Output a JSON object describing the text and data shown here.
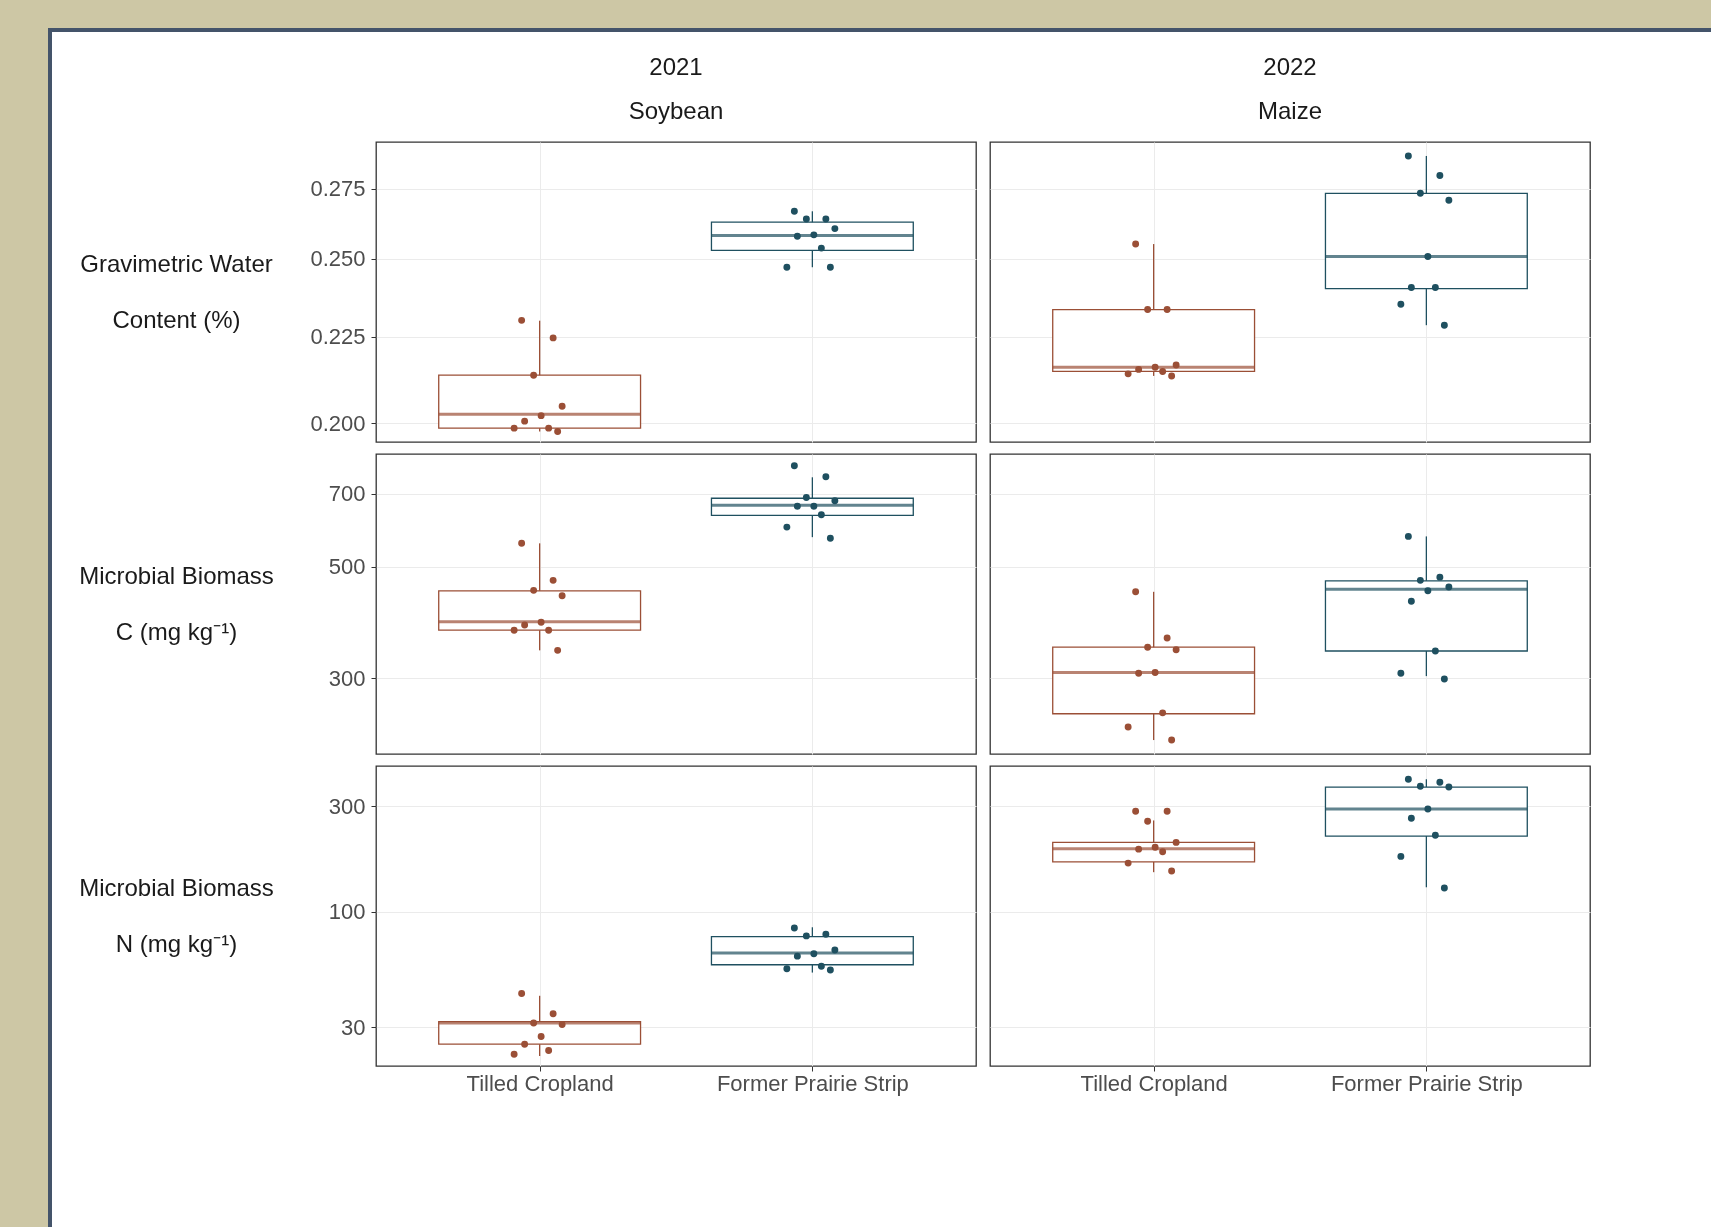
{
  "chart_data": [
    {
      "type": "box",
      "title": "2021",
      "subtitle": "Soybean",
      "ylabel": "Gravimetric Water Content (%)",
      "categories": [
        "Tilled Cropland",
        "Former Prairie Strip"
      ],
      "colors": [
        "#9b4f36",
        "#1f5060"
      ],
      "boxes": [
        {
          "low": 0.1978,
          "q1": 0.1987,
          "median": 0.2025,
          "q3": 0.2135,
          "high": 0.2299
        },
        {
          "low": 0.2472,
          "q1": 0.2529,
          "median": 0.2581,
          "q3": 0.2628,
          "high": 0.2667
        }
      ],
      "series": [
        {
          "type": "scatter",
          "color": "#9b4f36",
          "x": [
            "Tilled Cropland",
            "Tilled Cropland",
            "Tilled Cropland",
            "Tilled Cropland",
            "Tilled Cropland",
            "Tilled Cropland",
            "Tilled Cropland",
            "Tilled Cropland",
            "Tilled Cropland"
          ],
          "values": [
            0.23,
            0.2246,
            0.2135,
            0.2047,
            0.2021,
            0.2006,
            0.1987,
            0.1987,
            0.1978
          ]
        },
        {
          "type": "scatter",
          "color": "#1f5060",
          "x": [
            "Former Prairie Strip",
            "Former Prairie Strip",
            "Former Prairie Strip",
            "Former Prairie Strip",
            "Former Prairie Strip",
            "Former Prairie Strip",
            "Former Prairie Strip",
            "Former Prairie Strip",
            "Former Prairie Strip"
          ],
          "values": [
            0.2667,
            0.2639,
            0.2639,
            0.2605,
            0.2583,
            0.2578,
            0.2537,
            0.2472,
            0.2472
          ]
        }
      ],
      "log": true,
      "ylim": [
        0.195,
        0.293
      ],
      "yticks": [
        {
          "value": 0.2,
          "label": "0.200"
        },
        {
          "value": 0.225,
          "label": "0.225"
        },
        {
          "value": 0.25,
          "label": "0.250"
        },
        {
          "value": 0.275,
          "label": "0.275"
        }
      ],
      "grid": true,
      "tick_labels": "y"
    },
    {
      "type": "box",
      "title": "2022",
      "subtitle": "Maize",
      "categories": [
        "Tilled Cropland",
        "Former Prairie Strip"
      ],
      "colors": [
        "#9b4f36",
        "#1f5060"
      ],
      "boxes": [
        {
          "low": 0.2133,
          "q1": 0.2146,
          "median": 0.2158,
          "q3": 0.2334,
          "high": 0.2551
        },
        {
          "low": 0.2285,
          "q1": 0.2401,
          "median": 0.2508,
          "q3": 0.2733,
          "high": 0.2875
        }
      ],
      "series": [
        {
          "type": "scatter",
          "color": "#9b4f36",
          "x": [
            "Tilled Cropland",
            "Tilled Cropland",
            "Tilled Cropland",
            "Tilled Cropland",
            "Tilled Cropland",
            "Tilled Cropland",
            "Tilled Cropland",
            "Tilled Cropland",
            "Tilled Cropland"
          ],
          "values": [
            0.2551,
            0.2334,
            0.2334,
            0.2165,
            0.2158,
            0.2152,
            0.2146,
            0.2139,
            0.2133
          ]
        },
        {
          "type": "scatter",
          "color": "#1f5060",
          "x": [
            "Former Prairie Strip",
            "Former Prairie Strip",
            "Former Prairie Strip",
            "Former Prairie Strip",
            "Former Prairie Strip",
            "Former Prairie Strip",
            "Former Prairie Strip",
            "Former Prairie Strip",
            "Former Prairie Strip"
          ],
          "values": [
            0.2875,
            0.28,
            0.2733,
            0.2707,
            0.2508,
            0.2405,
            0.2405,
            0.2351,
            0.2285
          ]
        }
      ],
      "log": true,
      "ylim": [
        0.195,
        0.293
      ],
      "yticks": [
        0.2,
        0.225,
        0.25,
        0.275
      ],
      "grid": true,
      "tick_labels": false
    },
    {
      "type": "box",
      "ylabel": "Microbial Biomass C (mg kg⁻¹)",
      "categories": [
        "Tilled Cropland",
        "Former Prairie Strip"
      ],
      "colors": [
        "#9b4f36",
        "#1f5060"
      ],
      "boxes": [
        {
          "low": 341,
          "q1": 374,
          "median": 389,
          "q3": 448,
          "high": 557
        },
        {
          "low": 573,
          "q1": 633,
          "median": 663,
          "q3": 685,
          "high": 754
        }
      ],
      "series": [
        {
          "type": "scatter",
          "color": "#9b4f36",
          "x": [
            "Tilled Cropland",
            "Tilled Cropland",
            "Tilled Cropland",
            "Tilled Cropland",
            "Tilled Cropland",
            "Tilled Cropland",
            "Tilled Cropland",
            "Tilled Cropland",
            "Tilled Cropland"
          ],
          "values": [
            557,
            470,
            449,
            438,
            388,
            383,
            374,
            374,
            341
          ]
        },
        {
          "type": "scatter",
          "color": "#1f5060",
          "x": [
            "Former Prairie Strip",
            "Former Prairie Strip",
            "Former Prairie Strip",
            "Former Prairie Strip",
            "Former Prairie Strip",
            "Former Prairie Strip",
            "Former Prairie Strip",
            "Former Prairie Strip",
            "Former Prairie Strip"
          ],
          "values": [
            795,
            756,
            687,
            677,
            660,
            660,
            635,
            600,
            570
          ]
        }
      ],
      "log": true,
      "ylim": [
        212,
        839
      ],
      "yticks": [
        300,
        500,
        700
      ],
      "grid": true,
      "tick_labels": "y"
    },
    {
      "type": "box",
      "categories": [
        "Tilled Cropland",
        "Former Prairie Strip"
      ],
      "colors": [
        "#9b4f36",
        "#1f5060"
      ],
      "boxes": [
        {
          "low": 226,
          "q1": 255,
          "median": 308,
          "q3": 346,
          "high": 446
        },
        {
          "low": 303,
          "q1": 340,
          "median": 451,
          "q3": 469,
          "high": 575
        }
      ],
      "series": [
        {
          "type": "scatter",
          "color": "#9b4f36",
          "x": [
            "Tilled Cropland",
            "Tilled Cropland",
            "Tilled Cropland",
            "Tilled Cropland",
            "Tilled Cropland",
            "Tilled Cropland",
            "Tilled Cropland",
            "Tilled Cropland",
            "Tilled Cropland"
          ],
          "values": [
            446,
            361,
            346,
            342,
            308,
            307,
            256,
            240,
            226
          ]
        },
        {
          "type": "scatter",
          "color": "#1f5060",
          "x": [
            "Former Prairie Strip",
            "Former Prairie Strip",
            "Former Prairie Strip",
            "Former Prairie Strip",
            "Former Prairie Strip",
            "Former Prairie Strip",
            "Former Prairie Strip",
            "Former Prairie Strip",
            "Former Prairie Strip"
          ],
          "values": [
            575,
            477,
            470,
            456,
            448,
            427,
            340,
            307,
            299
          ]
        }
      ],
      "log": true,
      "ylim": [
        212,
        839
      ],
      "yticks": [
        300,
        500,
        700
      ],
      "grid": true,
      "tick_labels": false
    },
    {
      "type": "box",
      "ylabel": "Microbial Biomass N (mg kg⁻¹)",
      "categories": [
        "Tilled Cropland",
        "Former Prairie Strip"
      ],
      "colors": [
        "#9b4f36",
        "#1f5060"
      ],
      "boxes": [
        {
          "low": 22.2,
          "q1": 25.1,
          "median": 31.3,
          "q3": 31.8,
          "high": 41.6
        },
        {
          "low": 53.0,
          "q1": 57.5,
          "median": 65.0,
          "q3": 77.1,
          "high": 85.0
        }
      ],
      "series": [
        {
          "type": "scatter",
          "color": "#9b4f36",
          "x": [
            "Tilled Cropland",
            "Tilled Cropland",
            "Tilled Cropland",
            "Tilled Cropland",
            "Tilled Cropland",
            "Tilled Cropland",
            "Tilled Cropland",
            "Tilled Cropland"
          ],
          "values": [
            42.6,
            34.5,
            31.3,
            30.8,
            27.2,
            25.1,
            23.5,
            22.6
          ]
        },
        {
          "type": "scatter",
          "color": "#1f5060",
          "x": [
            "Former Prairie Strip",
            "Former Prairie Strip",
            "Former Prairie Strip",
            "Former Prairie Strip",
            "Former Prairie Strip",
            "Former Prairie Strip",
            "Former Prairie Strip",
            "Former Prairie Strip",
            "Former Prairie Strip"
          ],
          "values": [
            84.3,
            79.0,
            77.7,
            67.1,
            64.5,
            62.9,
            56.6,
            55.2,
            54.4
          ]
        }
      ],
      "log": true,
      "ylim": [
        20,
        457
      ],
      "yticks": [
        30,
        100,
        300
      ],
      "grid": true
    },
    {
      "type": "box",
      "categories": [
        "Tilled Cropland",
        "Former Prairie Strip"
      ],
      "colors": [
        "#9b4f36",
        "#1f5060"
      ],
      "boxes": [
        {
          "low": 151,
          "q1": 168,
          "median": 193,
          "q3": 206,
          "high": 259
        },
        {
          "low": 129,
          "q1": 220,
          "median": 292,
          "q3": 367,
          "high": 398
        }
      ],
      "series": [
        {
          "type": "scatter",
          "color": "#9b4f36",
          "x": [
            "Tilled Cropland",
            "Tilled Cropland",
            "Tilled Cropland",
            "Tilled Cropland",
            "Tilled Cropland",
            "Tilled Cropland",
            "Tilled Cropland",
            "Tilled Cropland",
            "Tilled Cropland"
          ],
          "values": [
            285,
            285,
            257,
            206,
            196,
            192,
            187,
            166,
            153
          ]
        },
        {
          "type": "scatter",
          "color": "#1f5060",
          "x": [
            "Former Prairie Strip",
            "Former Prairie Strip",
            "Former Prairie Strip",
            "Former Prairie Strip",
            "Former Prairie Strip",
            "Former Prairie Strip",
            "Former Prairie Strip",
            "Former Prairie Strip",
            "Former Prairie Strip"
          ],
          "values": [
            398,
            386,
            370,
            367,
            292,
            265,
            222,
            178,
            128
          ]
        }
      ],
      "log": true,
      "ylim": [
        20,
        457
      ],
      "yticks": [
        30,
        100,
        300
      ],
      "grid": true,
      "tick_labels": "x"
    }
  ]
}
